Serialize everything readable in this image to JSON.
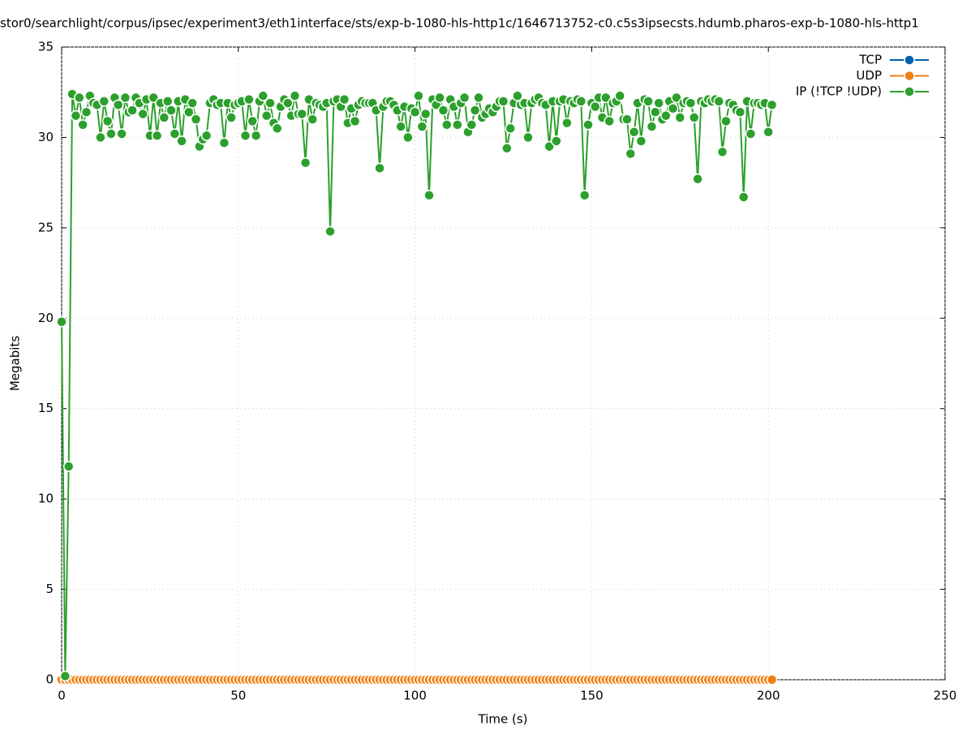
{
  "chart_data": {
    "type": "line",
    "title": "stor0/searchlight/corpus/ipsec/experiment3/eth1interface/sts/exp-b-1080-hls-http1c/1646713752-c0.c5s3ipsecsts.hdumb.pharos-exp-b-1080-hls-http1",
    "xlabel": "Time (s)",
    "ylabel": "Megabits",
    "xlim": [
      0,
      250
    ],
    "xticks": [
      0,
      50,
      100,
      150,
      200,
      250
    ],
    "ylim": [
      0,
      35
    ],
    "yticks": [
      0,
      5,
      10,
      15,
      20,
      25,
      30,
      35
    ],
    "grid": true,
    "legend": "top-right",
    "x": [
      0,
      1,
      2,
      3,
      4,
      5,
      6,
      7,
      8,
      9,
      10,
      11,
      12,
      13,
      14,
      15,
      16,
      17,
      18,
      19,
      20,
      21,
      22,
      23,
      24,
      25,
      26,
      27,
      28,
      29,
      30,
      31,
      32,
      33,
      34,
      35,
      36,
      37,
      38,
      39,
      40,
      41,
      42,
      43,
      44,
      45,
      46,
      47,
      48,
      49,
      50,
      51,
      52,
      53,
      54,
      55,
      56,
      57,
      58,
      59,
      60,
      61,
      62,
      63,
      64,
      65,
      66,
      67,
      68,
      69,
      70,
      71,
      72,
      73,
      74,
      75,
      76,
      77,
      78,
      79,
      80,
      81,
      82,
      83,
      84,
      85,
      86,
      87,
      88,
      89,
      90,
      91,
      92,
      93,
      94,
      95,
      96,
      97,
      98,
      99,
      100,
      101,
      102,
      103,
      104,
      105,
      106,
      107,
      108,
      109,
      110,
      111,
      112,
      113,
      114,
      115,
      116,
      117,
      118,
      119,
      120,
      121,
      122,
      123,
      124,
      125,
      126,
      127,
      128,
      129,
      130,
      131,
      132,
      133,
      134,
      135,
      136,
      137,
      138,
      139,
      140,
      141,
      142,
      143,
      144,
      145,
      146,
      147,
      148,
      149,
      150,
      151,
      152,
      153,
      154,
      155,
      156,
      157,
      158,
      159,
      160,
      161,
      162,
      163,
      164,
      165,
      166,
      167,
      168,
      169,
      170,
      171,
      172,
      173,
      174,
      175,
      176,
      177,
      178,
      179,
      180,
      181,
      182,
      183,
      184,
      185,
      186,
      187,
      188,
      189,
      190,
      191,
      192,
      193,
      194,
      195,
      196,
      197,
      198,
      199,
      200,
      201
    ],
    "series": [
      {
        "name": "TCP",
        "color": "#0060ad",
        "values": [
          0,
          0,
          0,
          0,
          0,
          0,
          0,
          0,
          0,
          0,
          0,
          0,
          0,
          0,
          0,
          0,
          0,
          0,
          0,
          0,
          0,
          0,
          0,
          0,
          0,
          0,
          0,
          0,
          0,
          0,
          0,
          0,
          0,
          0,
          0,
          0,
          0,
          0,
          0,
          0,
          0,
          0,
          0,
          0,
          0,
          0,
          0,
          0,
          0,
          0,
          0,
          0,
          0,
          0,
          0,
          0,
          0,
          0,
          0,
          0,
          0,
          0,
          0,
          0,
          0,
          0,
          0,
          0,
          0,
          0,
          0,
          0,
          0,
          0,
          0,
          0,
          0,
          0,
          0,
          0,
          0,
          0,
          0,
          0,
          0,
          0,
          0,
          0,
          0,
          0,
          0,
          0,
          0,
          0,
          0,
          0,
          0,
          0,
          0,
          0,
          0,
          0,
          0,
          0,
          0,
          0,
          0,
          0,
          0,
          0,
          0,
          0,
          0,
          0,
          0,
          0,
          0,
          0,
          0,
          0,
          0,
          0,
          0,
          0,
          0,
          0,
          0,
          0,
          0,
          0,
          0,
          0,
          0,
          0,
          0,
          0,
          0,
          0,
          0,
          0,
          0,
          0,
          0,
          0,
          0,
          0,
          0,
          0,
          0,
          0,
          0,
          0,
          0,
          0,
          0,
          0,
          0,
          0,
          0,
          0,
          0,
          0,
          0,
          0,
          0,
          0,
          0,
          0,
          0,
          0,
          0,
          0,
          0,
          0,
          0,
          0,
          0,
          0,
          0,
          0,
          0,
          0,
          0,
          0,
          0,
          0,
          0,
          0,
          0,
          0,
          0,
          0,
          0,
          0,
          0,
          0,
          0,
          0,
          0,
          0,
          0,
          0
        ]
      },
      {
        "name": "UDP",
        "color": "#f07f13",
        "values": [
          0,
          0,
          0,
          0,
          0,
          0,
          0,
          0,
          0,
          0,
          0,
          0,
          0,
          0,
          0,
          0,
          0,
          0,
          0,
          0,
          0,
          0,
          0,
          0,
          0,
          0,
          0,
          0,
          0,
          0,
          0,
          0,
          0,
          0,
          0,
          0,
          0,
          0,
          0,
          0,
          0,
          0,
          0,
          0,
          0,
          0,
          0,
          0,
          0,
          0,
          0,
          0,
          0,
          0,
          0,
          0,
          0,
          0,
          0,
          0,
          0,
          0,
          0,
          0,
          0,
          0,
          0,
          0,
          0,
          0,
          0,
          0,
          0,
          0,
          0,
          0,
          0,
          0,
          0,
          0,
          0,
          0,
          0,
          0,
          0,
          0,
          0,
          0,
          0,
          0,
          0,
          0,
          0,
          0,
          0,
          0,
          0,
          0,
          0,
          0,
          0,
          0,
          0,
          0,
          0,
          0,
          0,
          0,
          0,
          0,
          0,
          0,
          0,
          0,
          0,
          0,
          0,
          0,
          0,
          0,
          0,
          0,
          0,
          0,
          0,
          0,
          0,
          0,
          0,
          0,
          0,
          0,
          0,
          0,
          0,
          0,
          0,
          0,
          0,
          0,
          0,
          0,
          0,
          0,
          0,
          0,
          0,
          0,
          0,
          0,
          0,
          0,
          0,
          0,
          0,
          0,
          0,
          0,
          0,
          0,
          0,
          0,
          0,
          0,
          0,
          0,
          0,
          0,
          0,
          0,
          0,
          0,
          0,
          0,
          0,
          0,
          0,
          0,
          0,
          0,
          0,
          0,
          0,
          0,
          0,
          0,
          0,
          0,
          0,
          0,
          0,
          0,
          0,
          0,
          0,
          0,
          0,
          0,
          0,
          0,
          0,
          0
        ]
      },
      {
        "name": "IP (!TCP  !UDP)",
        "color": "#2ca02c",
        "values": [
          19.8,
          0.2,
          11.8,
          32.4,
          31.2,
          32.2,
          30.7,
          31.4,
          32.3,
          31.9,
          31.8,
          30.0,
          32.0,
          30.9,
          30.2,
          32.2,
          31.8,
          30.2,
          32.2,
          31.4,
          31.5,
          32.2,
          31.9,
          31.3,
          32.1,
          30.1,
          32.2,
          30.1,
          31.9,
          31.1,
          32.0,
          31.5,
          30.2,
          32.0,
          29.8,
          32.1,
          31.4,
          31.9,
          31.0,
          29.5,
          29.9,
          30.1,
          31.9,
          32.1,
          31.8,
          31.9,
          29.7,
          31.9,
          31.1,
          31.8,
          31.9,
          32.0,
          30.1,
          32.1,
          30.9,
          30.1,
          32.0,
          32.3,
          31.2,
          31.9,
          30.8,
          30.5,
          31.7,
          32.1,
          31.9,
          31.2,
          32.3,
          31.3,
          31.3,
          28.6,
          32.1,
          31.0,
          31.9,
          31.8,
          31.7,
          31.9,
          24.8,
          32.0,
          32.1,
          31.7,
          32.1,
          30.8,
          31.6,
          30.9,
          31.8,
          32.0,
          31.9,
          31.9,
          31.9,
          31.5,
          28.3,
          31.7,
          32.0,
          32.0,
          31.8,
          31.5,
          30.6,
          31.7,
          30.0,
          31.6,
          31.4,
          32.3,
          30.6,
          31.3,
          26.8,
          32.1,
          31.8,
          32.2,
          31.5,
          30.7,
          32.1,
          31.7,
          30.7,
          31.9,
          32.2,
          30.3,
          30.7,
          31.5,
          32.2,
          31.1,
          31.3,
          31.6,
          31.4,
          31.7,
          32.0,
          32.0,
          29.4,
          30.5,
          31.9,
          32.3,
          31.8,
          31.9,
          30.0,
          31.9,
          32.1,
          32.2,
          31.9,
          31.8,
          29.5,
          32.0,
          29.8,
          32.0,
          32.1,
          30.8,
          32.0,
          31.9,
          32.1,
          32.0,
          26.8,
          30.7,
          31.9,
          31.7,
          32.2,
          31.1,
          32.2,
          30.9,
          31.9,
          32.0,
          32.3,
          31.0,
          31.0,
          29.1,
          30.3,
          31.9,
          29.8,
          32.1,
          32.0,
          30.6,
          31.4,
          31.9,
          31.0,
          31.2,
          32.0,
          31.6,
          32.2,
          31.1,
          31.9,
          32.0,
          31.9,
          31.1,
          27.7,
          32.0,
          31.9,
          32.1,
          32.0,
          32.1,
          32.0,
          29.2,
          30.9,
          31.9,
          31.8,
          31.5,
          31.4,
          26.7,
          32.0,
          30.2,
          31.9,
          31.9,
          31.8,
          31.9,
          30.3,
          31.8
        ]
      }
    ]
  }
}
